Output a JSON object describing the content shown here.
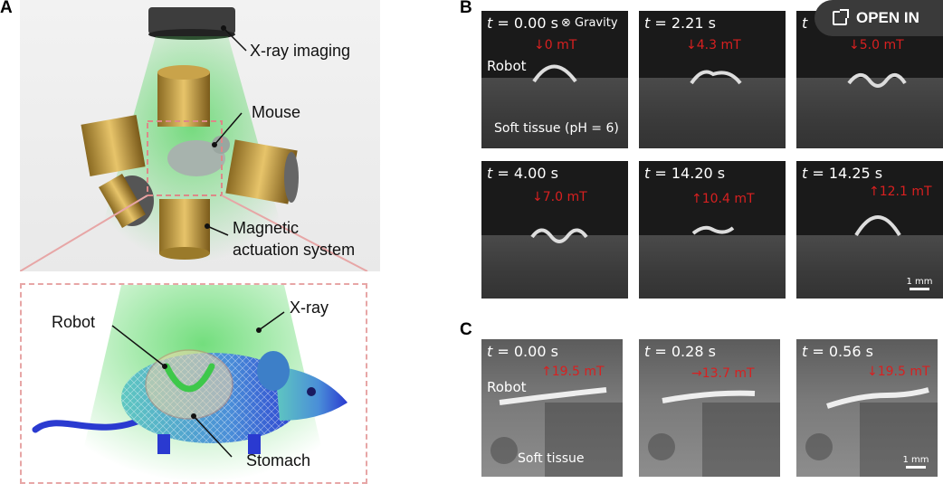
{
  "panels": {
    "a": "A",
    "b": "B",
    "c": "C"
  },
  "panelA": {
    "xray_imaging": "X-ray imaging",
    "mouse": "Mouse",
    "mag_line1": "Magnetic",
    "mag_line2": "actuation system",
    "robot": "Robot",
    "xray": "X-ray",
    "stomach": "Stomach"
  },
  "panelB": {
    "gravity": "Gravity",
    "robot_label": "Robot",
    "tissue_label": "Soft tissue (pH = 6)",
    "scale": "1 mm",
    "frames": [
      {
        "t": "= 0.00 s",
        "field": "0 mT",
        "dir": "down"
      },
      {
        "t": "= 2.21 s",
        "field": "4.3 mT",
        "dir": "down"
      },
      {
        "t": "",
        "field": "5.0 mT",
        "dir": "down"
      },
      {
        "t": "= 4.00 s",
        "field": "7.0 mT",
        "dir": "down"
      },
      {
        "t": "= 14.20 s",
        "field": "10.4 mT",
        "dir": "up"
      },
      {
        "t": "= 14.25 s",
        "field": "12.1 mT",
        "dir": "up"
      }
    ]
  },
  "panelC": {
    "robot_label": "Robot",
    "tissue_label": "Soft tissue",
    "scale": "1 mm",
    "frames": [
      {
        "t": "= 0.00 s",
        "field": "19.5 mT",
        "dir": "up"
      },
      {
        "t": "= 0.28 s",
        "field": "13.7 mT",
        "dir": "right"
      },
      {
        "t": "= 0.56 s",
        "field": "19.5 mT",
        "dir": "down"
      }
    ]
  },
  "overlay": {
    "open_in": "OPEN IN"
  },
  "colors": {
    "field_red": "#d82020",
    "xray_green": "#3fbf4a",
    "coil_gold": "#c9a34a",
    "zoom_pink": "#e7a6a6"
  }
}
